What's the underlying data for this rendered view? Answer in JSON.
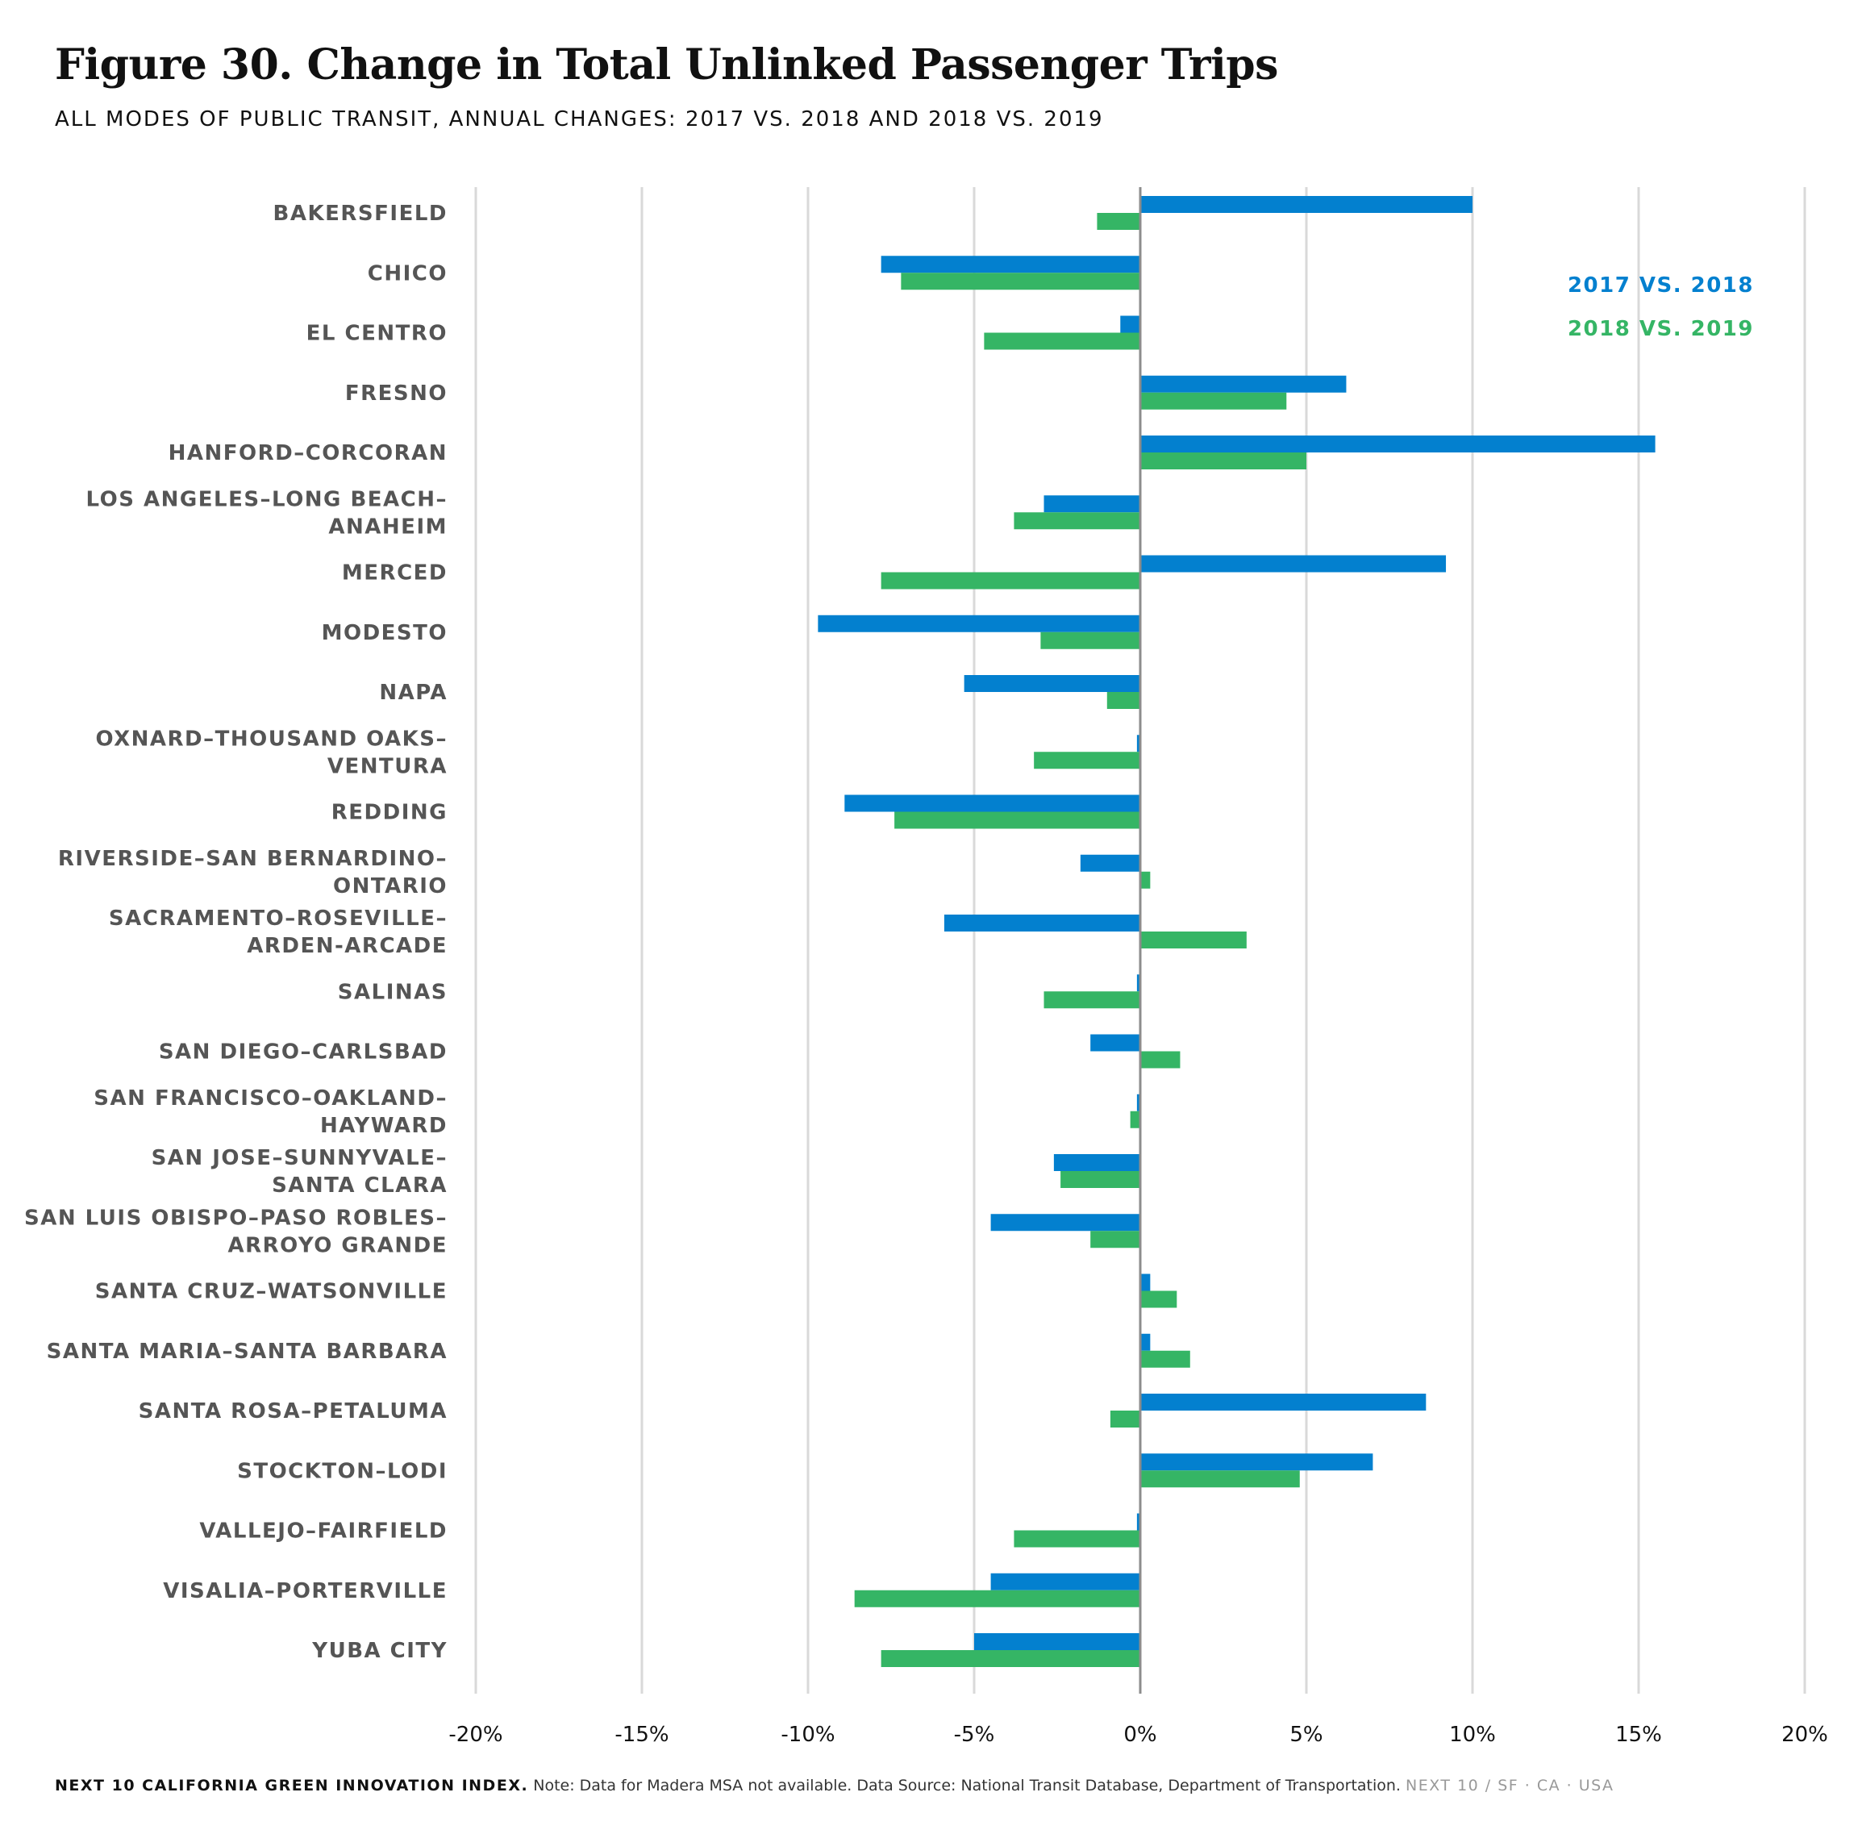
{
  "title": "Figure 30. Change in Total Unlinked Passenger Trips",
  "subtitle": "ALL MODES OF PUBLIC TRANSIT, ANNUAL CHANGES: 2017 VS. 2018 AND 2018 VS. 2019",
  "footer": {
    "brand": "NEXT 10 CALIFORNIA GREEN INNOVATION INDEX.",
    "note": "Note: Data for Madera MSA not available. Data Source: National Transit Database, Department of Transportation.",
    "org": "NEXT 10  /  SF · CA · USA"
  },
  "colors": {
    "series1": "#0380cf",
    "series2": "#35b565",
    "grid": "#d9d9d9",
    "axis": "#8c8c8c"
  },
  "chart_data": {
    "type": "bar",
    "orientation": "horizontal",
    "grid": true,
    "legend_position": "top-right",
    "xlim": [
      -20,
      20
    ],
    "ticks": [
      "-20%",
      "-15%",
      "-10%",
      "-5%",
      "0%",
      "5%",
      "10%",
      "15%",
      "20%"
    ],
    "categories": [
      [
        "BAKERSFIELD"
      ],
      [
        "CHICO"
      ],
      [
        "EL CENTRO"
      ],
      [
        "FRESNO"
      ],
      [
        "HANFORD–CORCORAN"
      ],
      [
        "LOS ANGELES–LONG BEACH–",
        "ANAHEIM"
      ],
      [
        "MERCED"
      ],
      [
        "MODESTO"
      ],
      [
        "NAPA"
      ],
      [
        "OXNARD–THOUSAND OAKS–",
        "VENTURA"
      ],
      [
        "REDDING"
      ],
      [
        "RIVERSIDE–SAN BERNARDINO–",
        "ONTARIO"
      ],
      [
        "SACRAMENTO–ROSEVILLE–",
        "ARDEN-ARCADE"
      ],
      [
        "SALINAS"
      ],
      [
        "SAN DIEGO–CARLSBAD"
      ],
      [
        "SAN FRANCISCO–OAKLAND–",
        "HAYWARD"
      ],
      [
        "SAN JOSE–SUNNYVALE–",
        "SANTA CLARA"
      ],
      [
        "SAN LUIS OBISPO–PASO ROBLES–",
        "ARROYO GRANDE"
      ],
      [
        "SANTA CRUZ–WATSONVILLE"
      ],
      [
        "SANTA MARIA–SANTA BARBARA"
      ],
      [
        "SANTA ROSA–PETALUMA"
      ],
      [
        "STOCKTON–LODI"
      ],
      [
        "VALLEJO–FAIRFIELD"
      ],
      [
        "VISALIA–PORTERVILLE"
      ],
      [
        "YUBA CITY"
      ]
    ],
    "series": [
      {
        "name": "2017 VS. 2018",
        "values": [
          10.0,
          -7.8,
          -0.6,
          6.2,
          15.5,
          -2.9,
          9.2,
          -9.7,
          -5.3,
          -0.1,
          -8.9,
          -1.8,
          -5.9,
          -0.1,
          -1.5,
          -0.1,
          -2.6,
          -4.5,
          0.3,
          0.3,
          8.6,
          7.0,
          -0.1,
          -4.5,
          -5.0
        ]
      },
      {
        "name": "2018 VS. 2019",
        "values": [
          -1.3,
          -7.2,
          -4.7,
          4.4,
          5.0,
          -3.8,
          -7.8,
          -3.0,
          -1.0,
          -3.2,
          -7.4,
          0.3,
          3.2,
          -2.9,
          1.2,
          -0.3,
          -2.4,
          -1.5,
          1.1,
          1.5,
          -0.9,
          4.8,
          -3.8,
          -8.6,
          -7.8
        ]
      }
    ]
  }
}
